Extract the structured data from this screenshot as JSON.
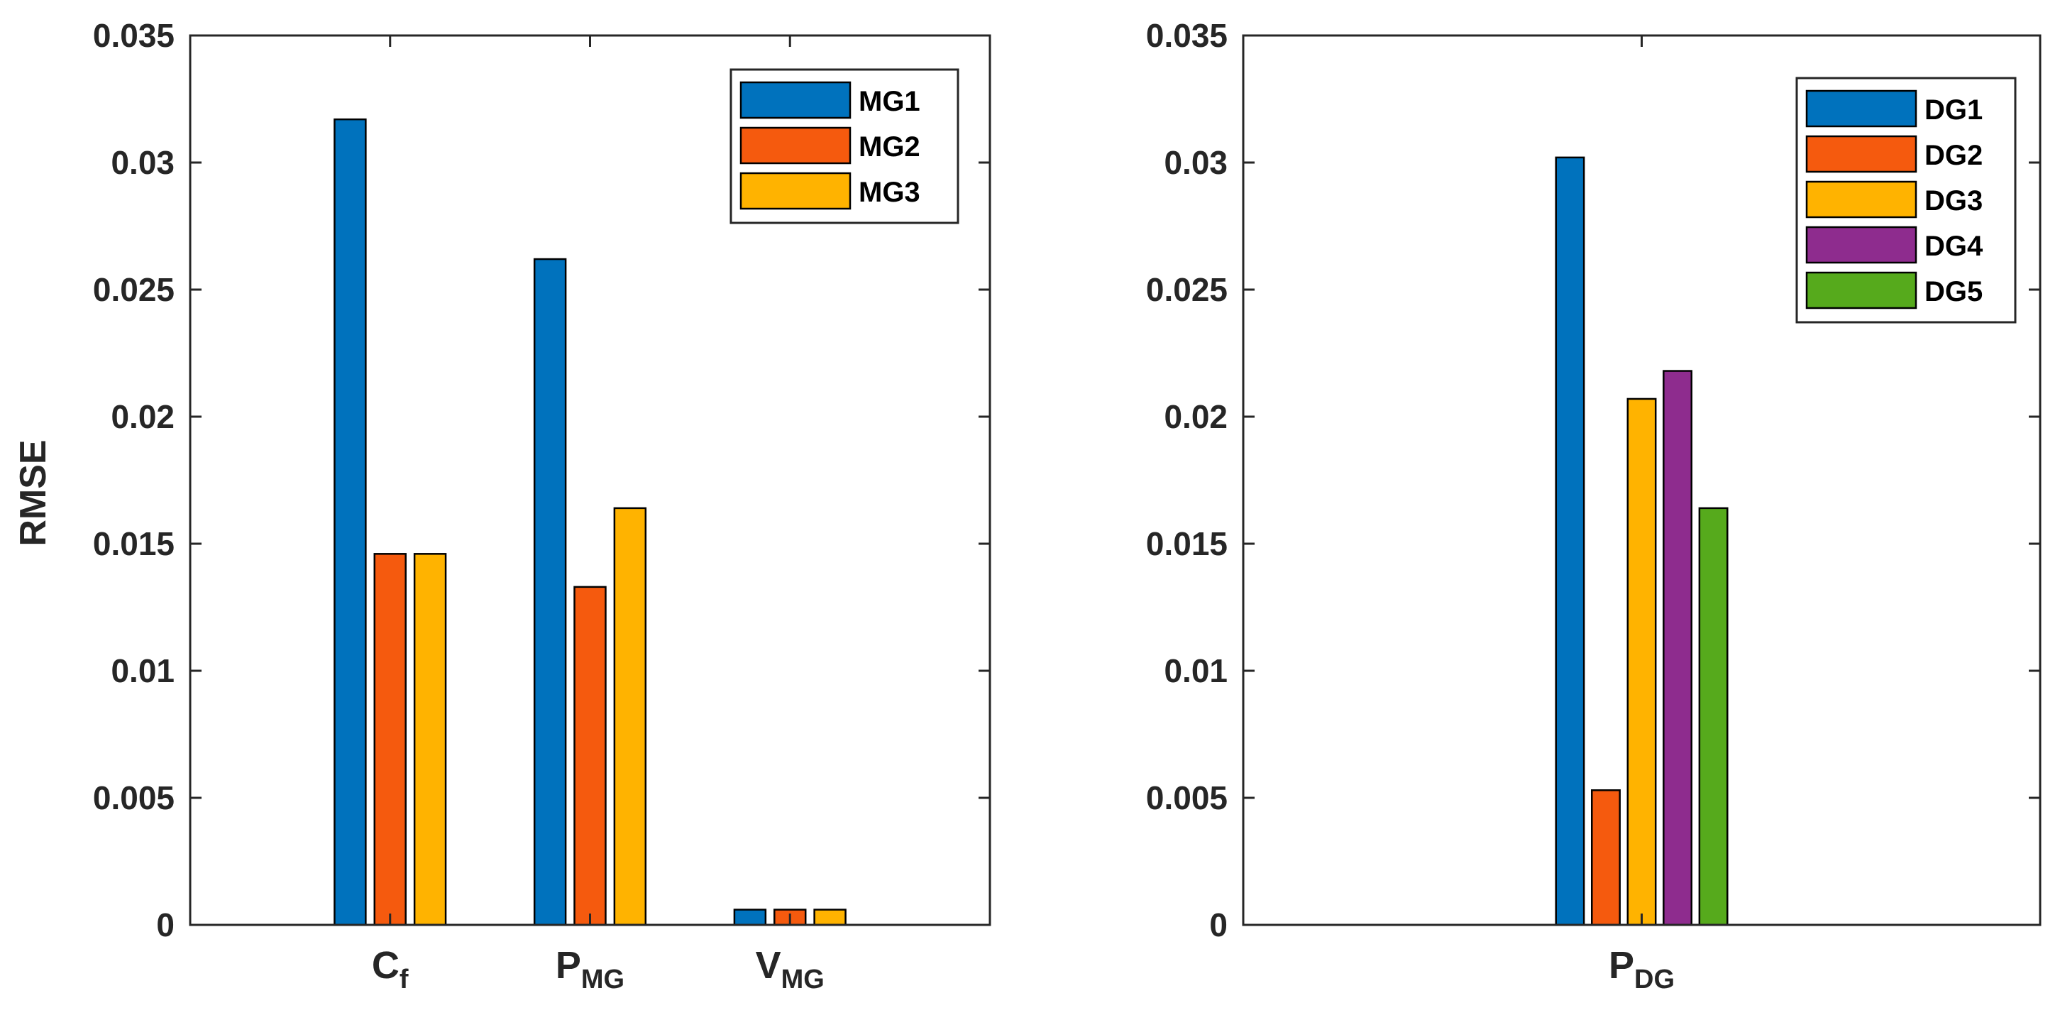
{
  "chart_data": [
    {
      "type": "bar",
      "ylabel": "RMSE",
      "ylim": [
        0,
        0.035
      ],
      "yticks": [
        0,
        0.005,
        0.01,
        0.015,
        0.02,
        0.025,
        0.03,
        0.035
      ],
      "ytick_labels": [
        "0",
        "0.005",
        "0.01",
        "0.015",
        "0.02",
        "0.025",
        "0.03",
        "0.035"
      ],
      "categories": [
        {
          "main": "C",
          "sub": "f"
        },
        {
          "main": "P",
          "sub": "MG"
        },
        {
          "main": "V",
          "sub": "MG"
        }
      ],
      "series": [
        {
          "name": "MG1",
          "color": "#0072BD",
          "values": [
            0.0317,
            0.0262,
            0.0006
          ]
        },
        {
          "name": "MG2",
          "color": "#F55A0E",
          "values": [
            0.0146,
            0.0133,
            0.0006
          ]
        },
        {
          "name": "MG3",
          "color": "#FFB300",
          "values": [
            0.0146,
            0.0164,
            0.0006
          ]
        }
      ],
      "legend_location": "top-right"
    },
    {
      "type": "bar",
      "ylabel": "",
      "ylim": [
        0,
        0.035
      ],
      "yticks": [
        0,
        0.005,
        0.01,
        0.015,
        0.02,
        0.025,
        0.03,
        0.035
      ],
      "ytick_labels": [
        "0",
        "0.005",
        "0.01",
        "0.015",
        "0.02",
        "0.025",
        "0.03",
        "0.035"
      ],
      "categories": [
        {
          "main": "P",
          "sub": "DG"
        }
      ],
      "series": [
        {
          "name": "DG1",
          "color": "#0072BD",
          "values": [
            0.0302
          ]
        },
        {
          "name": "DG2",
          "color": "#F55A0E",
          "values": [
            0.0053
          ]
        },
        {
          "name": "DG3",
          "color": "#FFB300",
          "values": [
            0.0207
          ]
        },
        {
          "name": "DG4",
          "color": "#8E2C8E",
          "values": [
            0.0218
          ]
        },
        {
          "name": "DG5",
          "color": "#56AA1C",
          "values": [
            0.0164
          ]
        }
      ],
      "legend_location": "top-right"
    }
  ]
}
